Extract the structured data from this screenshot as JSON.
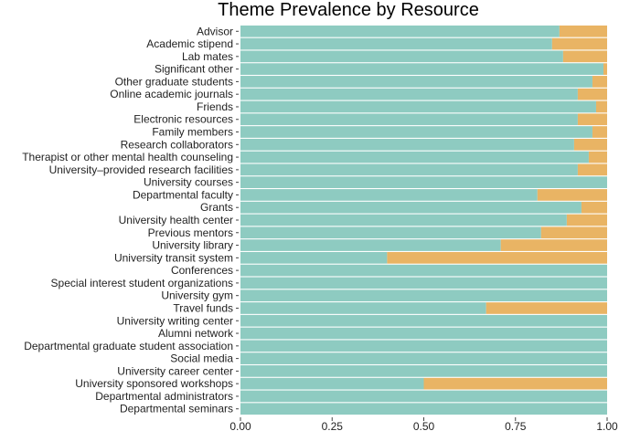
{
  "chart_data": {
    "type": "bar",
    "orientation": "horizontal",
    "stacked": true,
    "normalized": true,
    "title": "Theme Prevalence by Resource",
    "xlabel": "",
    "ylabel": "",
    "xlim": [
      0,
      1
    ],
    "xticks": [
      0,
      0.25,
      0.5,
      0.75,
      1
    ],
    "xtick_labels": [
      "0.00",
      "0.25",
      "0.50",
      "0.75",
      "1.00"
    ],
    "legend": "none",
    "colors": {
      "series_a": "#8ECBC1",
      "series_b": "#E9B464"
    },
    "categories": [
      "Advisor",
      "Academic stipend",
      "Lab mates",
      "Significant other",
      "Other graduate students",
      "Online academic journals",
      "Friends",
      "Electronic resources",
      "Family members",
      "Research collaborators",
      "Therapist or other mental health counseling",
      "University–provided research facilities",
      "University courses",
      "Departmental faculty",
      "Grants",
      "University health center",
      "Previous mentors",
      "University library",
      "University transit system",
      "Conferences",
      "Special interest student organizations",
      "University gym",
      "Travel funds",
      "University writing center",
      "Alumni network",
      "Departmental graduate student association",
      "Social media",
      "University career center",
      "University sponsored workshops",
      "Departmental administrators",
      "Departmental seminars"
    ],
    "series": [
      {
        "name": "teal",
        "values": [
          0.87,
          0.85,
          0.88,
          0.99,
          0.96,
          0.92,
          0.97,
          0.92,
          0.96,
          0.91,
          0.95,
          0.92,
          1.0,
          0.81,
          0.93,
          0.89,
          0.82,
          0.71,
          0.4,
          1.0,
          1.0,
          1.0,
          0.67,
          1.0,
          1.0,
          1.0,
          1.0,
          1.0,
          0.5,
          1.0,
          1.0
        ]
      },
      {
        "name": "orange",
        "values": [
          0.13,
          0.15,
          0.12,
          0.01,
          0.04,
          0.08,
          0.03,
          0.08,
          0.04,
          0.09,
          0.05,
          0.08,
          0.0,
          0.19,
          0.07,
          0.11,
          0.18,
          0.29,
          0.6,
          0.0,
          0.0,
          0.0,
          0.33,
          0.0,
          0.0,
          0.0,
          0.0,
          0.0,
          0.5,
          0.0,
          0.0
        ]
      }
    ]
  }
}
